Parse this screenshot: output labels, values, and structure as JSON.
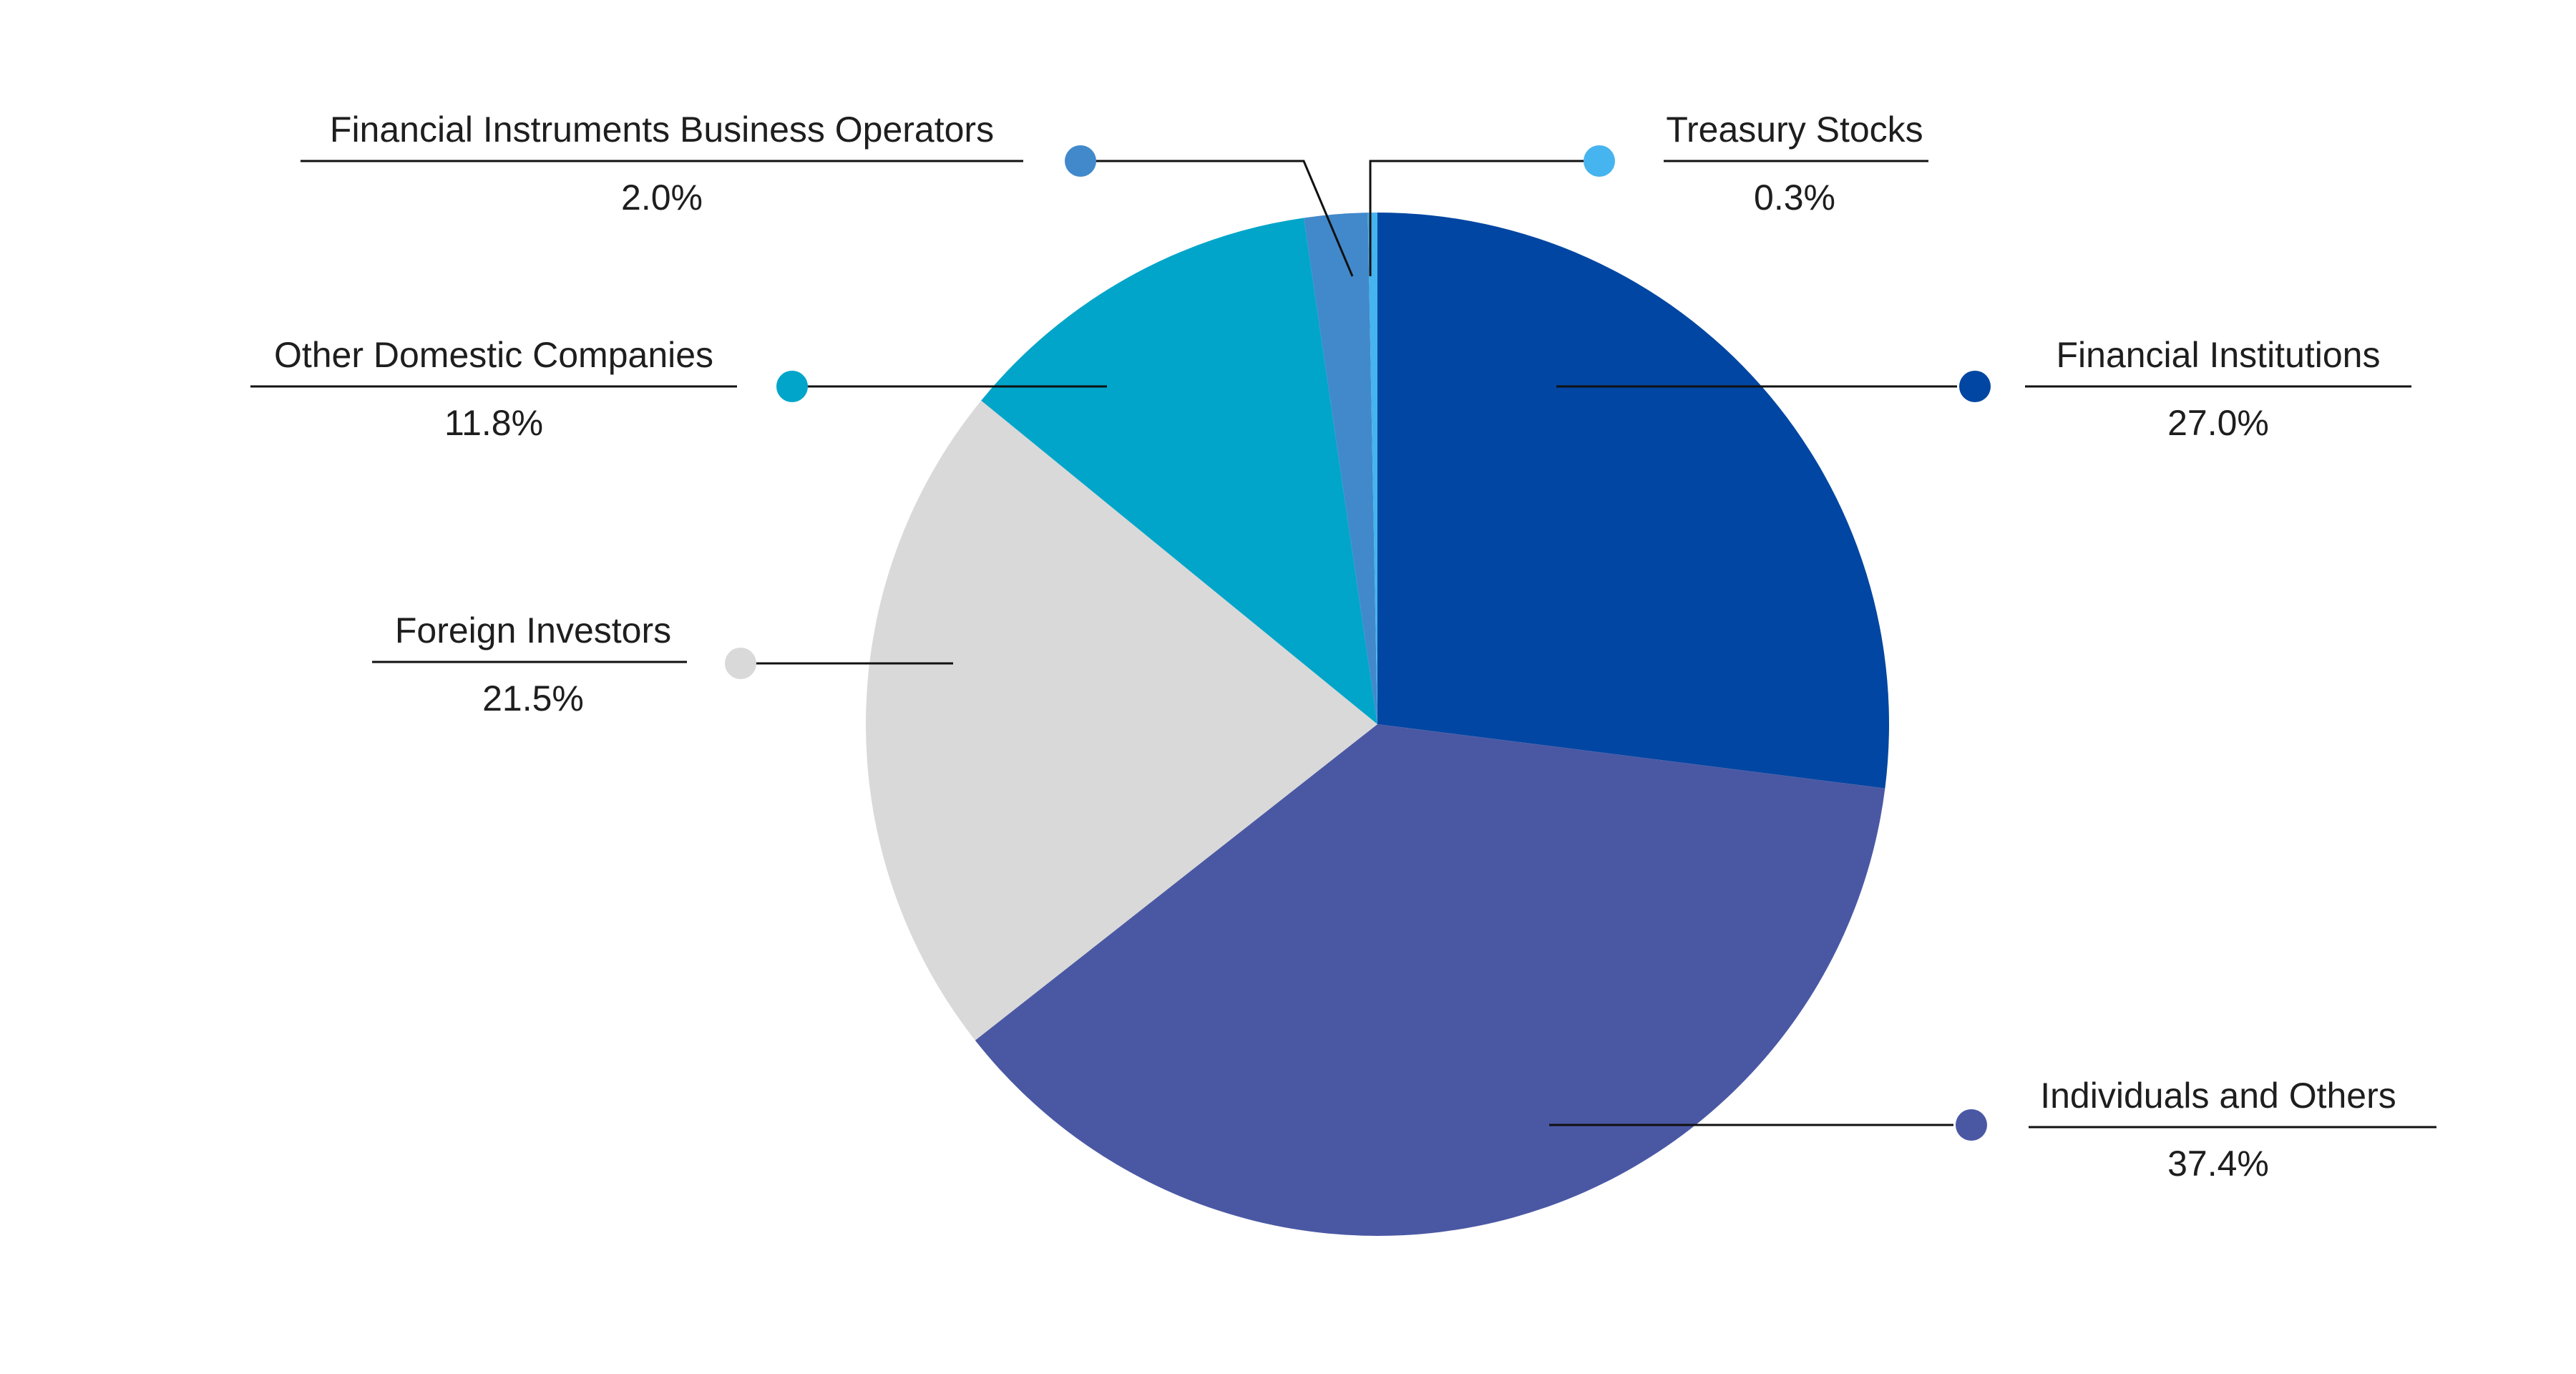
{
  "chart_data": {
    "type": "pie",
    "title": "",
    "start_angle_deg": 0,
    "direction": "clockwise",
    "slices": [
      {
        "label": "Financial Institutions",
        "value": 27.0,
        "display": "27.0%",
        "color": "#0046a2"
      },
      {
        "label": "Individuals and Others",
        "value": 37.4,
        "display": "37.4%",
        "color": "#4a58a4"
      },
      {
        "label": "Foreign Investors",
        "value": 21.5,
        "display": "21.5%",
        "color": "#d9d9d9"
      },
      {
        "label": "Other Domestic Companies",
        "value": 11.8,
        "display": "11.8%",
        "color": "#00a5c9"
      },
      {
        "label": "Financial Instruments Business Operators",
        "value": 2.0,
        "display": "2.0%",
        "color": "#4189cb"
      },
      {
        "label": "Treasury Stocks",
        "value": 0.3,
        "display": "0.3%",
        "color": "#46b4ee"
      }
    ],
    "leader_line_color": "#111111"
  }
}
